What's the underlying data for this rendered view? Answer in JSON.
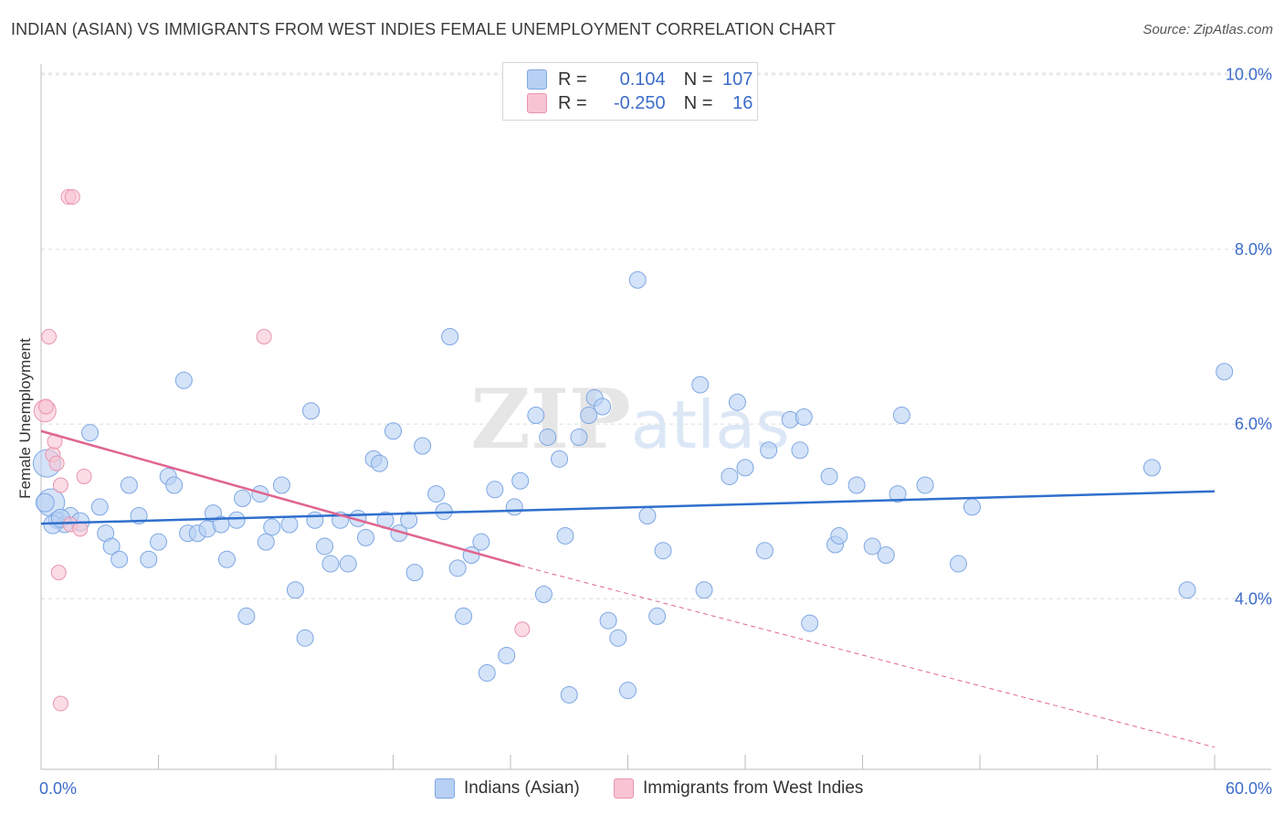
{
  "title": "INDIAN (ASIAN) VS IMMIGRANTS FROM WEST INDIES FEMALE UNEMPLOYMENT CORRELATION CHART",
  "source": "Source: ZipAtlas.com",
  "watermark": {
    "part1": "ZIP",
    "part2": "atlas"
  },
  "legend": {
    "rows": [
      {
        "r_label": "R =",
        "r_value": "0.104",
        "n_label": "N =",
        "n_value": "107"
      },
      {
        "r_label": "R =",
        "r_value": "-0.250",
        "n_label": "N =",
        "n_value": "16"
      }
    ]
  },
  "bottom_legend": [
    "Indians (Asian)",
    "Immigrants from West Indies"
  ],
  "colors": {
    "blue_fill": "#b7d0f3",
    "blue_stroke": "#7ea7e4",
    "blue_line": "#2f6fcd",
    "pink_fill": "#f8c4d3",
    "pink_stroke": "#ea94af",
    "pink_line": "#e0658f",
    "tick_text": "#3c6cc9"
  },
  "chart_data": {
    "type": "scatter",
    "title": "INDIAN (ASIAN) VS IMMIGRANTS FROM WEST INDIES FEMALE UNEMPLOYMENT CORRELATION CHART",
    "xlabel": "",
    "ylabel": "Female Unemployment",
    "xlim": [
      0,
      60
    ],
    "ylim": [
      2.0,
      10.3
    ],
    "x_tick_labels": [
      "0.0%",
      "60.0%"
    ],
    "y_ticks": [
      4,
      6,
      8,
      10
    ],
    "y_tick_labels": [
      "4.0%",
      "6.0%",
      "8.0%",
      "10.0%"
    ],
    "series": [
      {
        "name": "Indians (Asian)",
        "r": 0.104,
        "n": 107,
        "trend": {
          "x0": 0,
          "y0": 4.86,
          "x1": 60,
          "y1": 5.23
        },
        "points": [
          [
            0.3,
            5.55
          ],
          [
            0.5,
            5.1
          ],
          [
            0.8,
            4.9
          ],
          [
            1.2,
            4.85
          ],
          [
            1.5,
            4.95
          ],
          [
            2.5,
            5.9
          ],
          [
            3,
            5.05
          ],
          [
            3.3,
            4.75
          ],
          [
            3.6,
            4.6
          ],
          [
            4.0,
            4.45
          ],
          [
            4.5,
            5.3
          ],
          [
            5.0,
            4.95
          ],
          [
            5.5,
            4.45
          ],
          [
            6.0,
            4.65
          ],
          [
            6.5,
            5.4
          ],
          [
            6.8,
            5.3
          ],
          [
            7.3,
            6.5
          ],
          [
            7.5,
            4.75
          ],
          [
            8.0,
            4.75
          ],
          [
            8.5,
            4.8
          ],
          [
            8.8,
            4.98
          ],
          [
            9.2,
            4.85
          ],
          [
            9.5,
            4.45
          ],
          [
            10.0,
            4.9
          ],
          [
            10.3,
            5.15
          ],
          [
            10.5,
            3.8
          ],
          [
            11.2,
            5.2
          ],
          [
            11.5,
            4.65
          ],
          [
            11.8,
            4.82
          ],
          [
            12.3,
            5.3
          ],
          [
            12.7,
            4.85
          ],
          [
            13.0,
            4.1
          ],
          [
            13.5,
            3.55
          ],
          [
            13.8,
            6.15
          ],
          [
            14.0,
            4.9
          ],
          [
            14.5,
            4.6
          ],
          [
            14.8,
            4.4
          ],
          [
            15.3,
            4.9
          ],
          [
            15.7,
            4.4
          ],
          [
            16.2,
            4.92
          ],
          [
            16.6,
            4.7
          ],
          [
            17.0,
            5.6
          ],
          [
            17.3,
            5.55
          ],
          [
            17.6,
            4.9
          ],
          [
            18.0,
            5.92
          ],
          [
            18.3,
            4.75
          ],
          [
            18.8,
            4.9
          ],
          [
            19.1,
            4.3
          ],
          [
            19.5,
            5.75
          ],
          [
            20.2,
            5.2
          ],
          [
            20.6,
            5.0
          ],
          [
            20.9,
            7.0
          ],
          [
            21.3,
            4.35
          ],
          [
            21.6,
            3.8
          ],
          [
            22.0,
            4.5
          ],
          [
            22.5,
            4.65
          ],
          [
            22.8,
            3.15
          ],
          [
            23.2,
            5.25
          ],
          [
            23.8,
            3.35
          ],
          [
            24.2,
            5.05
          ],
          [
            24.5,
            5.35
          ],
          [
            25.3,
            6.1
          ],
          [
            25.7,
            4.05
          ],
          [
            25.9,
            5.85
          ],
          [
            26.5,
            5.6
          ],
          [
            26.8,
            4.72
          ],
          [
            27.0,
            2.9
          ],
          [
            27.5,
            5.85
          ],
          [
            28.0,
            6.1
          ],
          [
            28.3,
            6.3
          ],
          [
            28.7,
            6.2
          ],
          [
            29.0,
            3.75
          ],
          [
            29.5,
            3.55
          ],
          [
            30.0,
            2.95
          ],
          [
            30.5,
            7.65
          ],
          [
            31.0,
            4.95
          ],
          [
            31.5,
            3.8
          ],
          [
            31.8,
            4.55
          ],
          [
            33.7,
            6.45
          ],
          [
            33.9,
            4.1
          ],
          [
            35.2,
            5.4
          ],
          [
            35.6,
            6.25
          ],
          [
            36.0,
            5.5
          ],
          [
            37.0,
            4.55
          ],
          [
            37.2,
            5.7
          ],
          [
            38.3,
            6.05
          ],
          [
            38.8,
            5.7
          ],
          [
            39.0,
            6.08
          ],
          [
            39.3,
            3.72
          ],
          [
            40.3,
            5.4
          ],
          [
            40.6,
            4.62
          ],
          [
            40.8,
            4.72
          ],
          [
            41.7,
            5.3
          ],
          [
            42.5,
            4.6
          ],
          [
            43.2,
            4.5
          ],
          [
            43.8,
            5.2
          ],
          [
            44.0,
            6.1
          ],
          [
            45.2,
            5.3
          ],
          [
            46.9,
            4.4
          ],
          [
            47.6,
            5.05
          ],
          [
            56.8,
            5.5
          ],
          [
            58.6,
            4.1
          ],
          [
            60.5,
            6.6
          ],
          [
            0.2,
            5.1
          ],
          [
            0.6,
            4.85
          ],
          [
            1.0,
            4.92
          ],
          [
            2.0,
            4.88
          ]
        ]
      },
      {
        "name": "Immigrants from West Indies",
        "r": -0.25,
        "n": 16,
        "trend": {
          "x0": 0,
          "y0": 5.92,
          "x1": 24.5,
          "y1": 4.38
        },
        "trend_dashed": {
          "x0": 24.5,
          "y0": 4.38,
          "x1": 60,
          "y1": 2.3
        },
        "points": [
          [
            1.4,
            8.6
          ],
          [
            1.6,
            8.6
          ],
          [
            0.4,
            7.0
          ],
          [
            11.4,
            7.0
          ],
          [
            0.2,
            6.15
          ],
          [
            0.25,
            6.2
          ],
          [
            0.6,
            5.65
          ],
          [
            0.7,
            5.8
          ],
          [
            2.2,
            5.4
          ],
          [
            1.0,
            5.3
          ],
          [
            0.8,
            5.55
          ],
          [
            1.5,
            4.85
          ],
          [
            2.0,
            4.8
          ],
          [
            0.9,
            4.3
          ],
          [
            24.6,
            3.65
          ],
          [
            1.0,
            2.8
          ]
        ]
      }
    ]
  }
}
